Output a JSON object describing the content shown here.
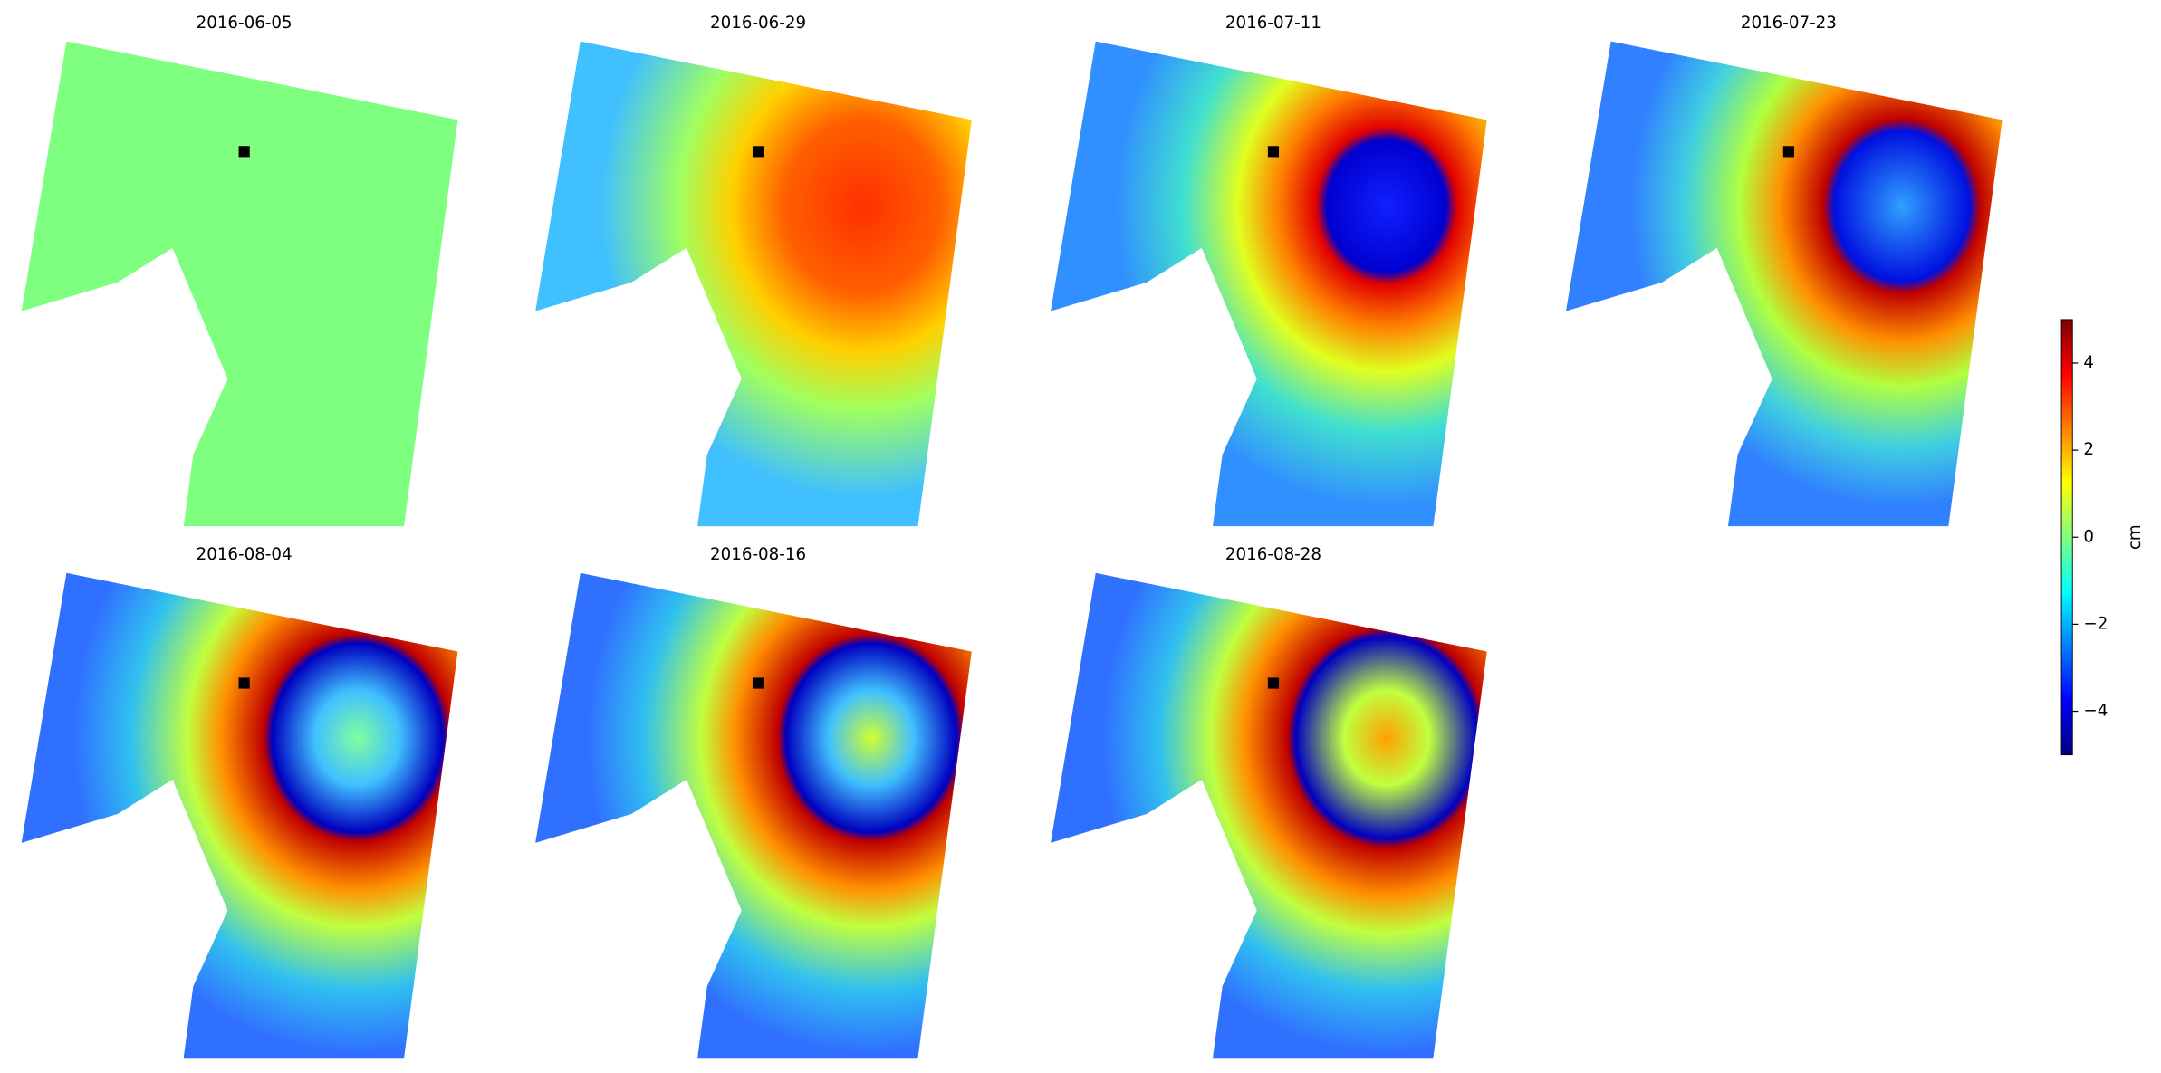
{
  "chart_data": {
    "type": "heatmap",
    "panels": [
      "2016-06-05",
      "2016-06-29",
      "2016-07-11",
      "2016-07-23",
      "2016-08-04",
      "2016-08-16",
      "2016-08-28"
    ],
    "colorbar": {
      "label": "cm",
      "lim": [
        -5,
        5
      ],
      "ticks": [
        {
          "value": 4,
          "label": "4"
        },
        {
          "value": 2,
          "label": "2"
        },
        {
          "value": 0,
          "label": "0"
        },
        {
          "value": -2,
          "label": "−2"
        },
        {
          "value": -4,
          "label": "−4"
        }
      ],
      "colormap": "jet"
    }
  }
}
